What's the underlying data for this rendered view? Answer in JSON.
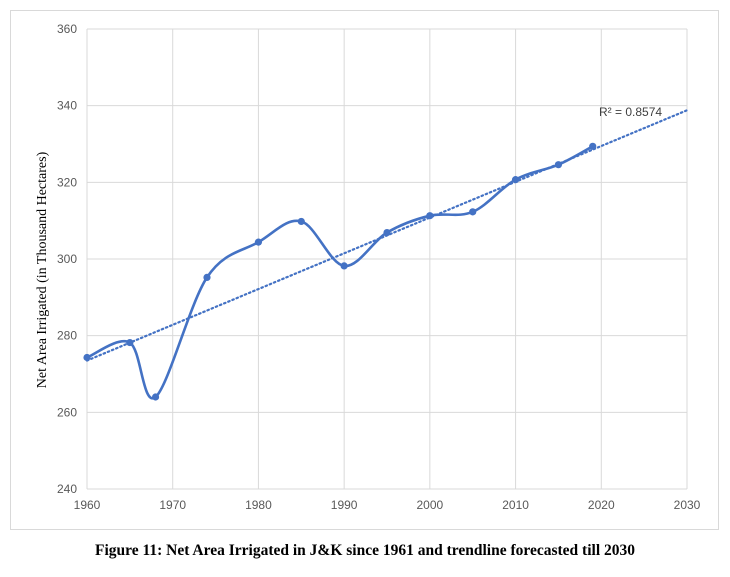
{
  "caption": "Figure 11: Net Area Irrigated in J&K since 1961 and trendline forecasted till 2030",
  "chart_data": {
    "type": "line",
    "title": "",
    "xlabel": "",
    "ylabel": "Net Area Irrigated (in Thousand Hectares)",
    "xlim": [
      1960,
      2030
    ],
    "ylim": [
      240,
      360
    ],
    "x_ticks": [
      1960,
      1970,
      1980,
      1990,
      2000,
      2010,
      2020,
      2030
    ],
    "y_ticks": [
      240,
      260,
      280,
      300,
      320,
      340,
      360
    ],
    "grid": true,
    "legend": "none",
    "series": [
      {
        "color": "#4472c4",
        "smooth": true,
        "markers": true,
        "x": [
          1960,
          1965,
          1968,
          1974,
          1980,
          1985,
          1990,
          1995,
          2000,
          2005,
          2010,
          2015,
          2019
        ],
        "y": [
          274.3,
          278.2,
          264.0,
          295.2,
          304.4,
          309.8,
          298.2,
          306.9,
          311.3,
          312.3,
          320.7,
          324.6,
          329.4
        ]
      }
    ],
    "trendline": {
      "type": "linear",
      "color": "#4472c4",
      "style": "dotted",
      "x": [
        1960,
        2030
      ],
      "y": [
        273.5,
        338.8
      ],
      "r2_label": "R² = 0.8574"
    }
  }
}
